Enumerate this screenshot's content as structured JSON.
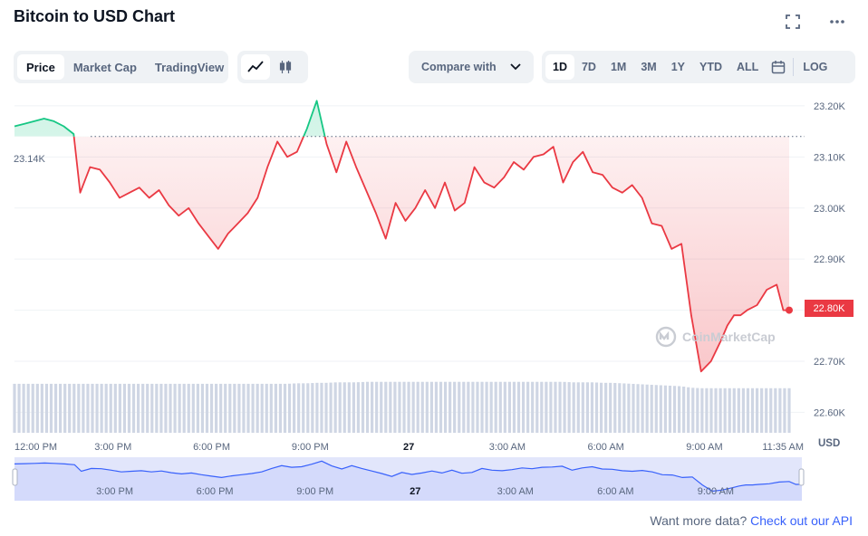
{
  "header": {
    "title": "Bitcoin to USD Chart",
    "expand_icon": "expand-icon",
    "more_icon": "more-icon"
  },
  "toolbar": {
    "view_tabs": [
      {
        "label": "Price",
        "active": true
      },
      {
        "label": "Market Cap",
        "active": false
      },
      {
        "label": "TradingView",
        "active": false
      }
    ],
    "chart_types": [
      {
        "icon": "line-chart-icon",
        "active": true
      },
      {
        "icon": "candlestick-icon",
        "active": false
      }
    ],
    "compare_label": "Compare with",
    "ranges": [
      {
        "label": "1D",
        "active": true
      },
      {
        "label": "7D",
        "active": false
      },
      {
        "label": "1M",
        "active": false
      },
      {
        "label": "3M",
        "active": false
      },
      {
        "label": "1Y",
        "active": false
      },
      {
        "label": "YTD",
        "active": false
      },
      {
        "label": "ALL",
        "active": false
      }
    ],
    "calendar_icon": "calendar-icon",
    "log_label": "LOG"
  },
  "colors": {
    "up": "#16c784",
    "down": "#ea3943",
    "volume": "#cfd6e4",
    "navigator_fill": "#e6e8fb",
    "navigator_line": "#3861fb",
    "link": "#3861fb"
  },
  "chart_data": {
    "type": "line",
    "series_label": "Price",
    "open_value": 23140,
    "open_label": "23.14K",
    "current_label": "22.80K",
    "currency_label": "USD",
    "ylim": [
      22560,
      23230
    ],
    "y_ticks": [
      {
        "value": 23200,
        "label": "23.20K"
      },
      {
        "value": 23100,
        "label": "23.10K"
      },
      {
        "value": 23000,
        "label": "23.00K"
      },
      {
        "value": 22900,
        "label": "22.90K"
      },
      {
        "value": 22800,
        "label": "22.80K"
      },
      {
        "value": 22700,
        "label": "22.70K"
      },
      {
        "value": 22600,
        "label": "22.60K"
      }
    ],
    "x_range": [
      0,
      23.58
    ],
    "x_ticks": [
      {
        "value": 0,
        "label": "12:00 PM",
        "bold": false
      },
      {
        "value": 3,
        "label": "3:00 PM",
        "bold": false
      },
      {
        "value": 6,
        "label": "6:00 PM",
        "bold": false
      },
      {
        "value": 9,
        "label": "9:00 PM",
        "bold": false
      },
      {
        "value": 12,
        "label": "27",
        "bold": true
      },
      {
        "value": 15,
        "label": "3:00 AM",
        "bold": false
      },
      {
        "value": 18,
        "label": "6:00 AM",
        "bold": false
      },
      {
        "value": 21,
        "label": "9:00 AM",
        "bold": false
      },
      {
        "value": 23.58,
        "label": "11:35 AM",
        "bold": false
      }
    ],
    "x": [
      0,
      0.3,
      0.6,
      0.9,
      1.2,
      1.5,
      1.8,
      2.0,
      2.3,
      2.6,
      2.9,
      3.2,
      3.5,
      3.8,
      4.1,
      4.4,
      4.7,
      5.0,
      5.3,
      5.6,
      5.9,
      6.2,
      6.5,
      6.8,
      7.1,
      7.4,
      7.7,
      8.0,
      8.3,
      8.6,
      8.9,
      9.2,
      9.5,
      9.8,
      10.1,
      10.4,
      10.7,
      11.0,
      11.3,
      11.6,
      11.9,
      12.2,
      12.5,
      12.8,
      13.1,
      13.4,
      13.7,
      14.0,
      14.3,
      14.6,
      14.9,
      15.2,
      15.5,
      15.8,
      16.1,
      16.4,
      16.7,
      17.0,
      17.3,
      17.6,
      17.9,
      18.2,
      18.5,
      18.8,
      19.1,
      19.4,
      19.7,
      20.0,
      20.3,
      20.6,
      20.9,
      21.2,
      21.5,
      21.7,
      21.9,
      22.1,
      22.3,
      22.6,
      22.9,
      23.2,
      23.4,
      23.58
    ],
    "price": [
      23160,
      23165,
      23170,
      23175,
      23170,
      23160,
      23145,
      23030,
      23080,
      23075,
      23050,
      23020,
      23030,
      23040,
      23020,
      23035,
      23005,
      22985,
      23000,
      22970,
      22945,
      22920,
      22950,
      22970,
      22990,
      23020,
      23080,
      23130,
      23100,
      23110,
      23155,
      23210,
      23125,
      23070,
      23130,
      23080,
      23035,
      22990,
      22940,
      23010,
      22975,
      23000,
      23035,
      23000,
      23050,
      22995,
      23010,
      23080,
      23050,
      23040,
      23060,
      23090,
      23075,
      23100,
      23105,
      23120,
      23050,
      23090,
      23110,
      23070,
      23065,
      23040,
      23030,
      23045,
      23020,
      22970,
      22965,
      22920,
      22930,
      22790,
      22680,
      22700,
      22740,
      22770,
      22790,
      22790,
      22800,
      22810,
      22840,
      22850,
      22800,
      22800
    ],
    "volume": [
      1,
      1,
      1,
      1,
      1,
      1,
      1,
      1,
      1,
      1,
      1,
      1,
      1,
      1,
      1,
      1,
      1,
      1,
      1,
      1,
      1,
      1,
      1,
      1,
      1,
      1,
      1,
      1,
      1,
      1.01,
      1.01,
      1.02,
      1.02,
      1.03,
      1.03,
      1.03,
      1.04,
      1.04,
      1.04,
      1.04,
      1.04,
      1.04,
      1.04,
      1.04,
      1.04,
      1.04,
      1.04,
      1.04,
      1.04,
      1.04,
      1.04,
      1.04,
      1.04,
      1.04,
      1.04,
      1.04,
      1.04,
      1.03,
      1.03,
      1.03,
      1.02,
      1.02,
      1.01,
      1.0,
      0.99,
      0.98,
      0.97,
      0.96,
      0.95,
      0.92,
      0.91,
      0.91,
      0.91,
      0.91,
      0.91,
      0.91,
      0.91,
      0.91,
      0.91,
      0.91,
      0.91,
      0.91
    ],
    "navigator_ticks": [
      {
        "value": 3,
        "label": "3:00 PM",
        "bold": false
      },
      {
        "value": 6,
        "label": "6:00 PM",
        "bold": false
      },
      {
        "value": 9,
        "label": "9:00 PM",
        "bold": false
      },
      {
        "value": 12,
        "label": "27",
        "bold": true
      },
      {
        "value": 15,
        "label": "3:00 AM",
        "bold": false
      },
      {
        "value": 18,
        "label": "6:00 AM",
        "bold": false
      },
      {
        "value": 21,
        "label": "9:00 AM",
        "bold": false
      }
    ],
    "watermark": "CoinMarketCap",
    "grid": true
  },
  "footer": {
    "prompt": "Want more data?",
    "link": "Check out our API"
  }
}
